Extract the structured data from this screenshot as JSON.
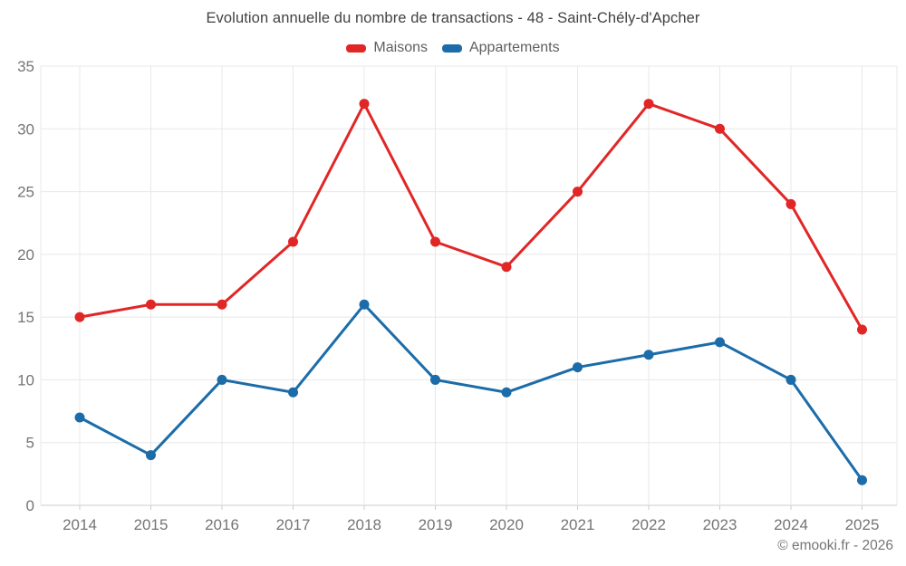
{
  "title": "Evolution annuelle du nombre de transactions - 48 - Saint-Chély-d'Apcher",
  "footer": "© emooki.fr - 2026",
  "colors": {
    "maisons": "#e12626",
    "appartements": "#1b6ca8",
    "grid": "#e8e8e8",
    "axis_line": "#cccccc",
    "tick_label": "#757575",
    "title_text": "#424242"
  },
  "chart_data": {
    "type": "line",
    "x": [
      2014,
      2015,
      2016,
      2017,
      2018,
      2019,
      2020,
      2021,
      2022,
      2023,
      2024,
      2025
    ],
    "series": [
      {
        "name": "Maisons",
        "color": "#e12626",
        "values": [
          15,
          16,
          16,
          21,
          32,
          21,
          19,
          25,
          32,
          30,
          24,
          14
        ]
      },
      {
        "name": "Appartements",
        "color": "#1b6ca8",
        "values": [
          7,
          4,
          10,
          9,
          16,
          10,
          9,
          11,
          12,
          13,
          10,
          2
        ]
      }
    ],
    "title": "Evolution annuelle du nombre de transactions - 48 - Saint-Chély-d'Apcher",
    "xlabel": "",
    "ylabel": "",
    "ylim": [
      0,
      35
    ],
    "yticks": [
      0,
      5,
      10,
      15,
      20,
      25,
      30,
      35
    ],
    "grid": true,
    "legend_position": "top"
  }
}
